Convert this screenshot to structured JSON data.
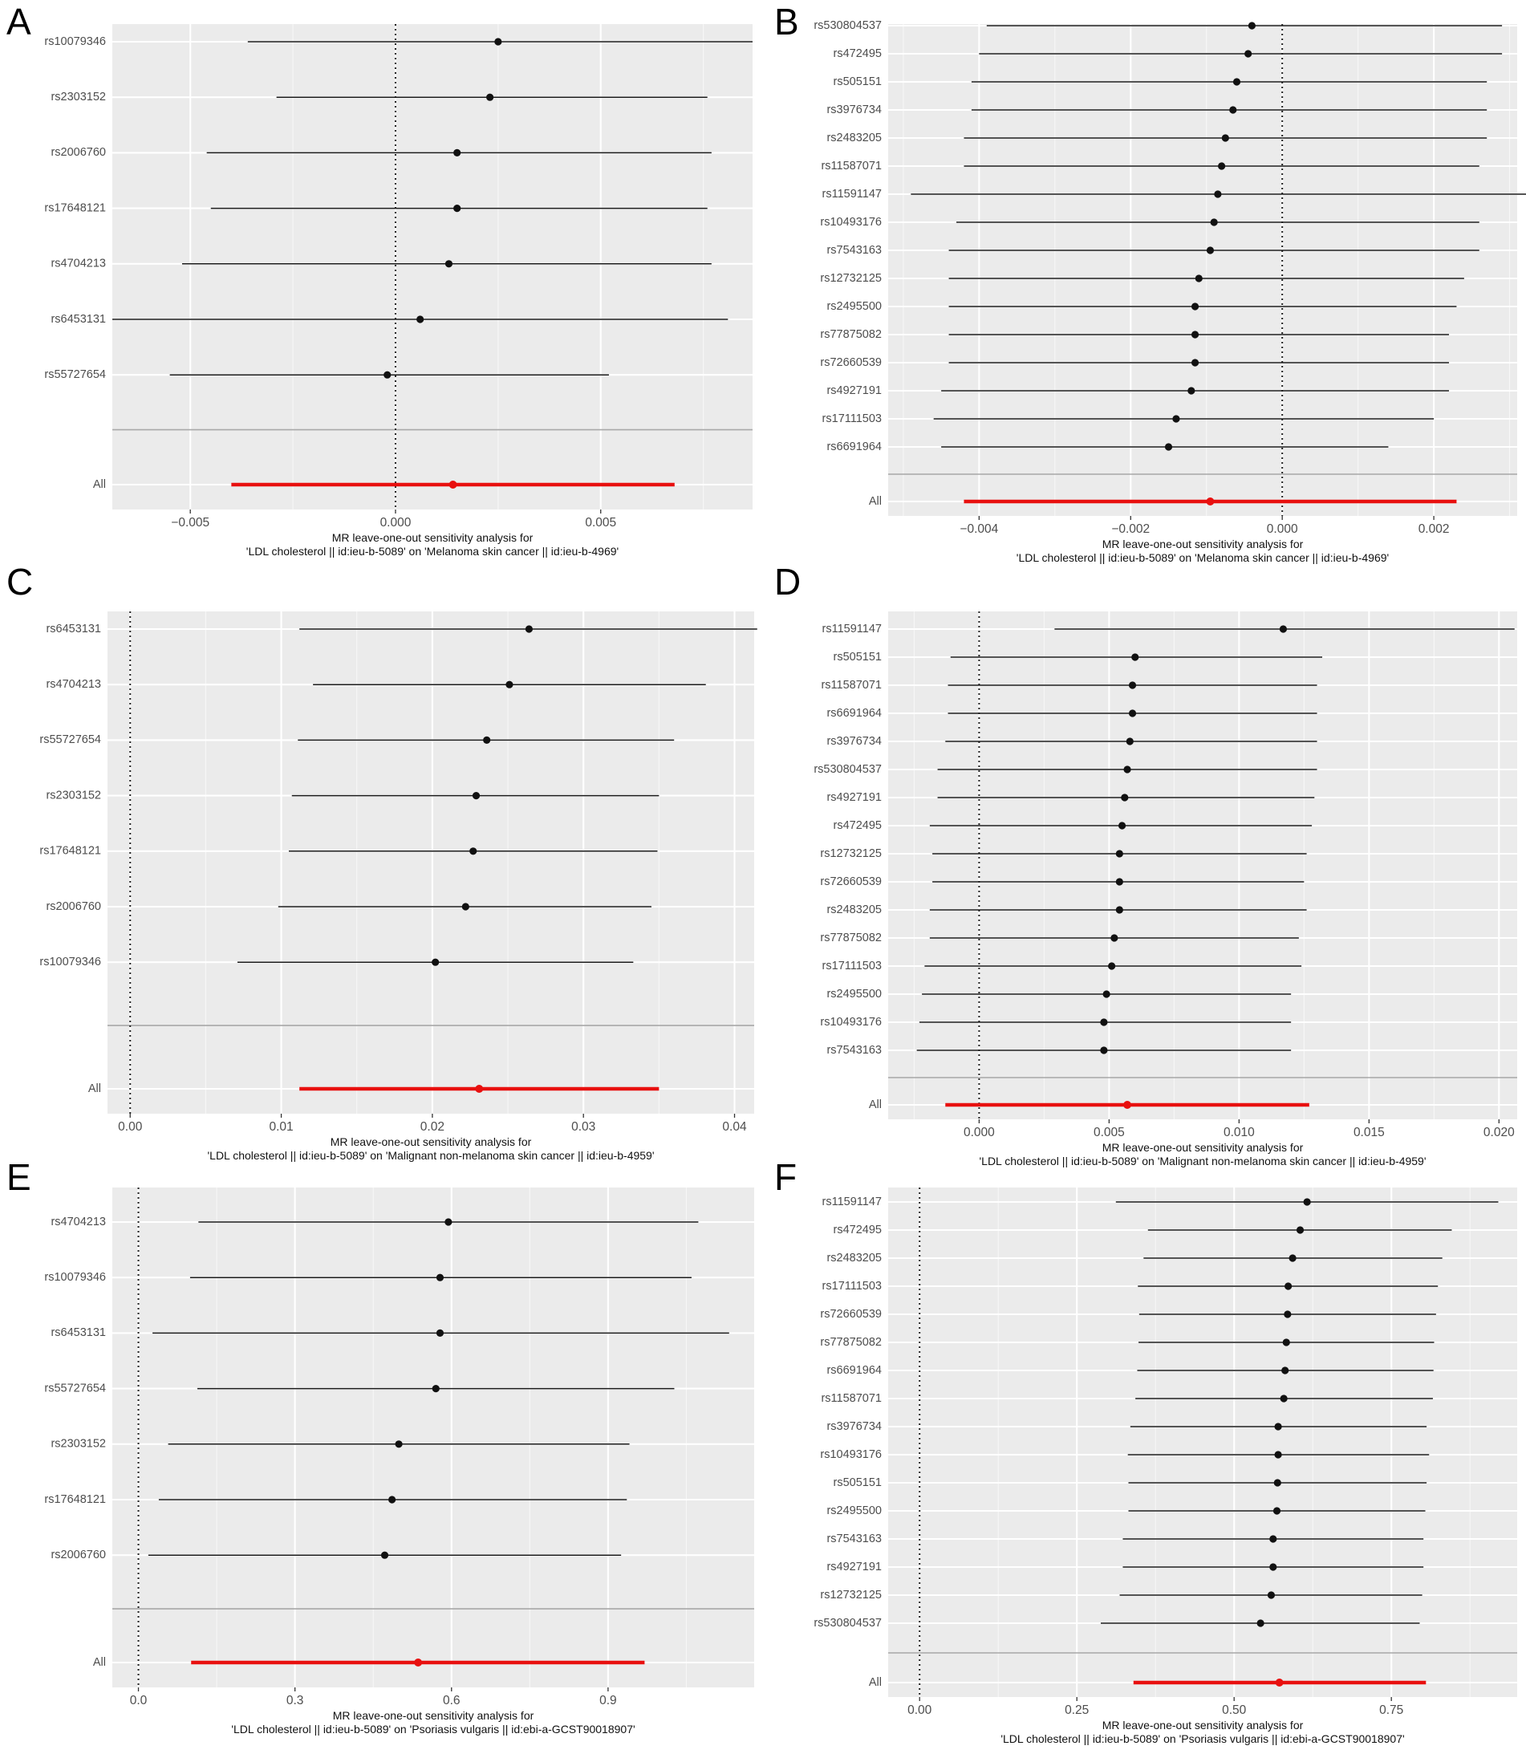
{
  "figure": {
    "panels": [
      {
        "letter": "A",
        "caption": [
          "MR leave-one-out sensitivity analysis for",
          "'LDL cholesterol || id:ieu-b-5089' on 'Melanoma skin cancer || id:ieu-b-4969'"
        ]
      },
      {
        "letter": "B",
        "caption": [
          "MR leave-one-out sensitivity analysis for",
          "'LDL cholesterol || id:ieu-b-5089' on 'Melanoma skin cancer || id:ieu-b-4969'"
        ]
      },
      {
        "letter": "C",
        "caption": [
          "MR leave-one-out sensitivity analysis for",
          "'LDL cholesterol || id:ieu-b-5089' on 'Malignant non-melanoma skin cancer || id:ieu-b-4959'"
        ]
      },
      {
        "letter": "D",
        "caption": [
          "MR leave-one-out sensitivity analysis for",
          "'LDL cholesterol || id:ieu-b-5089' on 'Malignant non-melanoma skin cancer || id:ieu-b-4959'"
        ]
      },
      {
        "letter": "E",
        "caption": [
          "MR leave-one-out sensitivity analysis for",
          "'LDL cholesterol || id:ieu-b-5089' on 'Psoriasis vulgaris || id:ebi-a-GCST90018907'"
        ]
      },
      {
        "letter": "F",
        "caption": [
          "MR leave-one-out sensitivity analysis for",
          "'LDL cholesterol || id:ieu-b-5089' on 'Psoriasis vulgaris || id:ebi-a-GCST90018907'"
        ]
      }
    ]
  },
  "chart_data": [
    {
      "type": "forest",
      "panel": "A",
      "title": "MR leave-one-out sensitivity analysis for 'LDL cholesterol || id:ieu-b-5089' on 'Melanoma skin cancer || id:ieu-b-4969'",
      "xlim": [
        -0.0069,
        0.0087
      ],
      "xticks": [
        -0.005,
        0.0,
        0.005
      ],
      "xtick_labels": [
        "−0.005",
        "0.000",
        "0.005"
      ],
      "snps": [
        {
          "label": "rs10079346",
          "b": 0.0025,
          "lo": -0.0036,
          "hi": 0.0087
        },
        {
          "label": "rs2303152",
          "b": 0.0023,
          "lo": -0.0029,
          "hi": 0.0076
        },
        {
          "label": "rs2006760",
          "b": 0.0015,
          "lo": -0.0046,
          "hi": 0.0077
        },
        {
          "label": "rs17648121",
          "b": 0.0015,
          "lo": -0.0045,
          "hi": 0.0076
        },
        {
          "label": "rs4704213",
          "b": 0.0013,
          "lo": -0.0052,
          "hi": 0.0077
        },
        {
          "label": "rs6453131",
          "b": 0.0006,
          "lo": -0.0069,
          "hi": 0.0081
        },
        {
          "label": "rs55727654",
          "b": -0.0002,
          "lo": -0.0055,
          "hi": 0.0052
        }
      ],
      "all": {
        "label": "All",
        "b": 0.0014,
        "lo": -0.004,
        "hi": 0.0068
      }
    },
    {
      "type": "forest",
      "panel": "B",
      "title": "MR leave-one-out sensitivity analysis for 'LDL cholesterol || id:ieu-b-5089' on 'Melanoma skin cancer || id:ieu-b-4969'",
      "xlim": [
        -0.0052,
        0.0031
      ],
      "xticks": [
        -0.004,
        -0.002,
        0.0,
        0.002
      ],
      "xtick_labels": [
        "−0.004",
        "−0.002",
        "0.000",
        "0.002"
      ],
      "snps": [
        {
          "label": "rs530804537",
          "b": -0.0004,
          "lo": -0.0039,
          "hi": 0.0029
        },
        {
          "label": "rs472495",
          "b": -0.00045,
          "lo": -0.004,
          "hi": 0.0029
        },
        {
          "label": "rs505151",
          "b": -0.0006,
          "lo": -0.0041,
          "hi": 0.0027
        },
        {
          "label": "rs3976734",
          "b": -0.00065,
          "lo": -0.0041,
          "hi": 0.0027
        },
        {
          "label": "rs2483205",
          "b": -0.00075,
          "lo": -0.0042,
          "hi": 0.0027
        },
        {
          "label": "rs11587071",
          "b": -0.0008,
          "lo": -0.0042,
          "hi": 0.0026
        },
        {
          "label": "rs11591147",
          "b": -0.00085,
          "lo": -0.0049,
          "hi": 0.0033
        },
        {
          "label": "rs10493176",
          "b": -0.0009,
          "lo": -0.0043,
          "hi": 0.0026
        },
        {
          "label": "rs7543163",
          "b": -0.00095,
          "lo": -0.0044,
          "hi": 0.0026
        },
        {
          "label": "rs12732125",
          "b": -0.0011,
          "lo": -0.0044,
          "hi": 0.0024
        },
        {
          "label": "rs2495500",
          "b": -0.00115,
          "lo": -0.0044,
          "hi": 0.0023
        },
        {
          "label": "rs77875082",
          "b": -0.00115,
          "lo": -0.0044,
          "hi": 0.0022
        },
        {
          "label": "rs72660539",
          "b": -0.00115,
          "lo": -0.0044,
          "hi": 0.0022
        },
        {
          "label": "rs4927191",
          "b": -0.0012,
          "lo": -0.0045,
          "hi": 0.0022
        },
        {
          "label": "rs17111503",
          "b": -0.0014,
          "lo": -0.0046,
          "hi": 0.002
        },
        {
          "label": "rs6691964",
          "b": -0.0015,
          "lo": -0.0045,
          "hi": 0.0014
        }
      ],
      "all": {
        "label": "All",
        "b": -0.00095,
        "lo": -0.0042,
        "hi": 0.0023
      }
    },
    {
      "type": "forest",
      "panel": "C",
      "title": "MR leave-one-out sensitivity analysis for 'LDL cholesterol || id:ieu-b-5089' on 'Malignant non-melanoma skin cancer || id:ieu-b-4959'",
      "xlim": [
        -0.0015,
        0.0413
      ],
      "xticks": [
        0.0,
        0.01,
        0.02,
        0.03,
        0.04
      ],
      "xtick_labels": [
        "0.00",
        "0.01",
        "0.02",
        "0.03",
        "0.04"
      ],
      "snps": [
        {
          "label": "rs6453131",
          "b": 0.0264,
          "lo": 0.0112,
          "hi": 0.0415
        },
        {
          "label": "rs4704213",
          "b": 0.0251,
          "lo": 0.0121,
          "hi": 0.0381
        },
        {
          "label": "rs55727654",
          "b": 0.0236,
          "lo": 0.0111,
          "hi": 0.036
        },
        {
          "label": "rs2303152",
          "b": 0.0229,
          "lo": 0.0107,
          "hi": 0.035
        },
        {
          "label": "rs17648121",
          "b": 0.0227,
          "lo": 0.0105,
          "hi": 0.0349
        },
        {
          "label": "rs2006760",
          "b": 0.0222,
          "lo": 0.0098,
          "hi": 0.0345
        },
        {
          "label": "rs10079346",
          "b": 0.0202,
          "lo": 0.0071,
          "hi": 0.0333
        }
      ],
      "all": {
        "label": "All",
        "b": 0.0231,
        "lo": 0.0112,
        "hi": 0.035
      }
    },
    {
      "type": "forest",
      "panel": "D",
      "title": "MR leave-one-out sensitivity analysis for 'LDL cholesterol || id:ieu-b-5089' on 'Malignant non-melanoma skin cancer || id:ieu-b-4959'",
      "xlim": [
        -0.0035,
        0.0207
      ],
      "xticks": [
        0.0,
        0.005,
        0.01,
        0.015,
        0.02
      ],
      "xtick_labels": [
        "0.000",
        "0.005",
        "0.010",
        "0.015",
        "0.020"
      ],
      "snps": [
        {
          "label": "rs11591147",
          "b": 0.0117,
          "lo": 0.0029,
          "hi": 0.0206
        },
        {
          "label": "rs505151",
          "b": 0.006,
          "lo": -0.0011,
          "hi": 0.0132
        },
        {
          "label": "rs11587071",
          "b": 0.0059,
          "lo": -0.0012,
          "hi": 0.013
        },
        {
          "label": "rs6691964",
          "b": 0.0059,
          "lo": -0.0012,
          "hi": 0.013
        },
        {
          "label": "rs3976734",
          "b": 0.0058,
          "lo": -0.0013,
          "hi": 0.013
        },
        {
          "label": "rs530804537",
          "b": 0.0057,
          "lo": -0.0016,
          "hi": 0.013
        },
        {
          "label": "rs4927191",
          "b": 0.0056,
          "lo": -0.0016,
          "hi": 0.0129
        },
        {
          "label": "rs472495",
          "b": 0.0055,
          "lo": -0.0019,
          "hi": 0.0128
        },
        {
          "label": "rs12732125",
          "b": 0.0054,
          "lo": -0.0018,
          "hi": 0.0126
        },
        {
          "label": "rs72660539",
          "b": 0.0054,
          "lo": -0.0018,
          "hi": 0.0125
        },
        {
          "label": "rs2483205",
          "b": 0.0054,
          "lo": -0.0019,
          "hi": 0.0126
        },
        {
          "label": "rs77875082",
          "b": 0.0052,
          "lo": -0.0019,
          "hi": 0.0123
        },
        {
          "label": "rs17111503",
          "b": 0.0051,
          "lo": -0.0021,
          "hi": 0.0124
        },
        {
          "label": "rs2495500",
          "b": 0.0049,
          "lo": -0.0022,
          "hi": 0.012
        },
        {
          "label": "rs10493176",
          "b": 0.0048,
          "lo": -0.0023,
          "hi": 0.012
        },
        {
          "label": "rs7543163",
          "b": 0.0048,
          "lo": -0.0024,
          "hi": 0.012
        }
      ],
      "all": {
        "label": "All",
        "b": 0.0057,
        "lo": -0.0013,
        "hi": 0.0127
      }
    },
    {
      "type": "forest",
      "panel": "E",
      "title": "MR leave-one-out sensitivity analysis for 'LDL cholesterol || id:ieu-b-5089' on 'Psoriasis vulgaris || id:ebi-a-GCST90018907'",
      "xlim": [
        -0.05,
        1.18
      ],
      "xticks": [
        0.0,
        0.3,
        0.6,
        0.9
      ],
      "xtick_labels": [
        "0.0",
        "0.3",
        "0.6",
        "0.9"
      ],
      "snps": [
        {
          "label": "rs4704213",
          "b": 0.594,
          "lo": 0.115,
          "hi": 1.073
        },
        {
          "label": "rs10079346",
          "b": 0.578,
          "lo": 0.099,
          "hi": 1.06
        },
        {
          "label": "rs6453131",
          "b": 0.578,
          "lo": 0.027,
          "hi": 1.132
        },
        {
          "label": "rs55727654",
          "b": 0.57,
          "lo": 0.113,
          "hi": 1.027
        },
        {
          "label": "rs2303152",
          "b": 0.499,
          "lo": 0.057,
          "hi": 0.941
        },
        {
          "label": "rs17648121",
          "b": 0.486,
          "lo": 0.039,
          "hi": 0.936
        },
        {
          "label": "rs2006760",
          "b": 0.472,
          "lo": 0.019,
          "hi": 0.925
        }
      ],
      "all": {
        "label": "All",
        "b": 0.536,
        "lo": 0.101,
        "hi": 0.97
      }
    },
    {
      "type": "forest",
      "panel": "F",
      "title": "MR leave-one-out sensitivity analysis for 'LDL cholesterol || id:ieu-b-5089' on 'Psoriasis vulgaris || id:ebi-a-GCST90018907'",
      "xlim": [
        -0.05,
        0.95
      ],
      "xticks": [
        0.0,
        0.25,
        0.5,
        0.75
      ],
      "xtick_labels": [
        "0.00",
        "0.25",
        "0.50",
        "0.75"
      ],
      "snps": [
        {
          "label": "rs11591147",
          "b": 0.616,
          "lo": 0.312,
          "hi": 0.92
        },
        {
          "label": "rs472495",
          "b": 0.605,
          "lo": 0.363,
          "hi": 0.846
        },
        {
          "label": "rs2483205",
          "b": 0.593,
          "lo": 0.356,
          "hi": 0.831
        },
        {
          "label": "rs17111503",
          "b": 0.586,
          "lo": 0.347,
          "hi": 0.824
        },
        {
          "label": "rs72660539",
          "b": 0.585,
          "lo": 0.349,
          "hi": 0.821
        },
        {
          "label": "rs77875082",
          "b": 0.583,
          "lo": 0.348,
          "hi": 0.818
        },
        {
          "label": "rs6691964",
          "b": 0.581,
          "lo": 0.346,
          "hi": 0.817
        },
        {
          "label": "rs11587071",
          "b": 0.579,
          "lo": 0.343,
          "hi": 0.816
        },
        {
          "label": "rs3976734",
          "b": 0.57,
          "lo": 0.335,
          "hi": 0.806
        },
        {
          "label": "rs10493176",
          "b": 0.57,
          "lo": 0.331,
          "hi": 0.81
        },
        {
          "label": "rs505151",
          "b": 0.569,
          "lo": 0.332,
          "hi": 0.806
        },
        {
          "label": "rs2495500",
          "b": 0.568,
          "lo": 0.332,
          "hi": 0.804
        },
        {
          "label": "rs7543163",
          "b": 0.562,
          "lo": 0.323,
          "hi": 0.801
        },
        {
          "label": "rs4927191",
          "b": 0.562,
          "lo": 0.323,
          "hi": 0.801
        },
        {
          "label": "rs12732125",
          "b": 0.559,
          "lo": 0.318,
          "hi": 0.799
        },
        {
          "label": "rs530804537",
          "b": 0.542,
          "lo": 0.288,
          "hi": 0.795
        }
      ],
      "all": {
        "label": "All",
        "b": 0.572,
        "lo": 0.34,
        "hi": 0.805
      }
    }
  ]
}
